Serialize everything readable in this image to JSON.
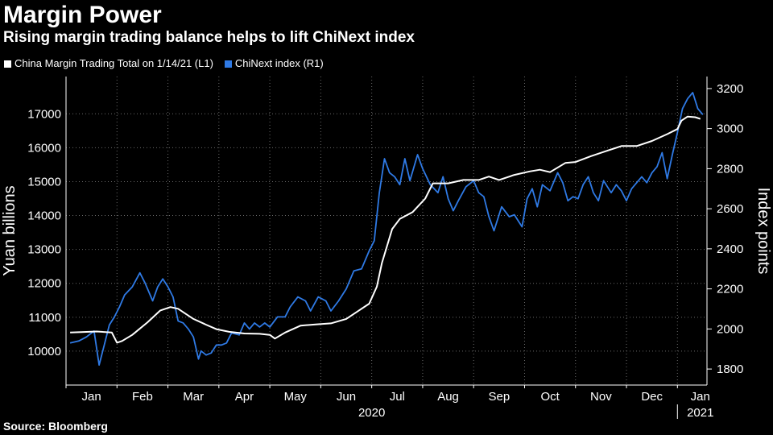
{
  "header": {
    "title": "Margin Power",
    "subtitle": "Rising margin trading balance helps to lift ChiNext index"
  },
  "legend": {
    "margin_label": "China Margin Trading Total on 1/14/21 (L1)",
    "chinext_label": "ChiNext index  (R1)"
  },
  "footer": {
    "source": "Source: Bloomberg"
  },
  "colors": {
    "background": "#000000",
    "text": "#ffffff",
    "margin_series": "#ffffff",
    "chinext_series": "#2f7ae5",
    "grid": "#6a6a6a"
  },
  "chart_data": {
    "type": "line",
    "title": "Margin Power",
    "subtitle": "Rising margin trading balance helps to lift ChiNext index",
    "xlabel": "",
    "ylabel": "Yuan billions",
    "y2label": "Index points",
    "x_unit": "months since 2020-01-01",
    "xlim": [
      0,
      12.58
    ],
    "ylim": [
      9000,
      18100
    ],
    "y2lim": [
      1720,
      3260
    ],
    "y_ticks": [
      10000,
      11000,
      12000,
      13000,
      14000,
      15000,
      16000,
      17000
    ],
    "y_tick_labels": [
      "10000",
      "11000",
      "12000",
      "13000",
      "14000",
      "15000",
      "16000",
      "17000"
    ],
    "y2_ticks": [
      1800,
      2000,
      2200,
      2400,
      2600,
      2800,
      3000,
      3200
    ],
    "y2_tick_labels": [
      "1800",
      "2000",
      "2200",
      "2400",
      "2600",
      "2800",
      "3000",
      "3200"
    ],
    "x_ticks": [
      {
        "label": "Jan",
        "pos": 0.5
      },
      {
        "label": "Feb",
        "pos": 1.5
      },
      {
        "label": "Mar",
        "pos": 2.5
      },
      {
        "label": "Apr",
        "pos": 3.5
      },
      {
        "label": "May",
        "pos": 4.5
      },
      {
        "label": "Jun",
        "pos": 5.5
      },
      {
        "label": "Jul",
        "pos": 6.5
      },
      {
        "label": "Aug",
        "pos": 7.5
      },
      {
        "label": "Sep",
        "pos": 8.5
      },
      {
        "label": "Oct",
        "pos": 9.5
      },
      {
        "label": "Nov",
        "pos": 10.5
      },
      {
        "label": "Dec",
        "pos": 11.5
      },
      {
        "label": "Jan",
        "pos": 12.45
      }
    ],
    "year_labels": [
      {
        "label": "2020",
        "pos": 6.0
      },
      {
        "label": "2021",
        "pos": 12.45
      }
    ],
    "year_divider": 12.0,
    "grid": true,
    "series": [
      {
        "name": "China Margin Trading Total on 1/14/21 (L1)",
        "axis": "left",
        "color": "#ffffff",
        "x": [
          0.08,
          0.3,
          0.6,
          0.9,
          1.0,
          1.1,
          1.3,
          1.6,
          1.85,
          2.05,
          2.2,
          2.5,
          2.75,
          2.95,
          3.2,
          3.5,
          3.8,
          4.0,
          4.1,
          4.3,
          4.6,
          4.9,
          5.2,
          5.5,
          5.75,
          5.95,
          6.1,
          6.2,
          6.4,
          6.55,
          6.8,
          7.05,
          7.2,
          7.5,
          7.8,
          8.1,
          8.3,
          8.5,
          8.8,
          9.1,
          9.3,
          9.5,
          9.8,
          10.0,
          10.3,
          10.6,
          10.9,
          11.0,
          11.2,
          11.5,
          11.8,
          12.0,
          12.08,
          12.2,
          12.35,
          12.45
        ],
        "values": [
          10550,
          10560,
          10580,
          10550,
          10250,
          10300,
          10480,
          10850,
          11200,
          11300,
          11250,
          10950,
          10780,
          10650,
          10570,
          10520,
          10510,
          10480,
          10370,
          10550,
          10750,
          10790,
          10820,
          10950,
          11200,
          11400,
          11900,
          12600,
          13600,
          13900,
          14100,
          14500,
          14950,
          14950,
          15050,
          15050,
          15150,
          15050,
          15200,
          15300,
          15350,
          15280,
          15550,
          15580,
          15750,
          15900,
          16050,
          16050,
          16050,
          16200,
          16400,
          16550,
          16800,
          16920,
          16900,
          16850
        ]
      },
      {
        "name": "ChiNext index  (R1)",
        "axis": "right",
        "color": "#2f7ae5",
        "x": [
          0.08,
          0.25,
          0.4,
          0.55,
          0.65,
          0.75,
          0.85,
          0.95,
          1.05,
          1.15,
          1.3,
          1.45,
          1.55,
          1.7,
          1.8,
          1.9,
          2.0,
          2.1,
          2.2,
          2.3,
          2.4,
          2.5,
          2.6,
          2.65,
          2.75,
          2.85,
          2.95,
          3.05,
          3.15,
          3.25,
          3.4,
          3.5,
          3.6,
          3.7,
          3.8,
          3.9,
          4.0,
          4.15,
          4.3,
          4.4,
          4.55,
          4.7,
          4.8,
          4.95,
          5.1,
          5.2,
          5.35,
          5.5,
          5.65,
          5.8,
          5.95,
          6.05,
          6.15,
          6.25,
          6.35,
          6.45,
          6.55,
          6.65,
          6.75,
          6.9,
          7.0,
          7.15,
          7.3,
          7.4,
          7.5,
          7.6,
          7.7,
          7.85,
          8.0,
          8.1,
          8.2,
          8.3,
          8.4,
          8.5,
          8.55,
          8.7,
          8.8,
          8.95,
          9.05,
          9.15,
          9.25,
          9.35,
          9.5,
          9.65,
          9.75,
          9.85,
          9.95,
          10.05,
          10.15,
          10.25,
          10.35,
          10.45,
          10.55,
          10.7,
          10.8,
          10.9,
          11.0,
          11.1,
          11.2,
          11.3,
          11.4,
          11.5,
          11.6,
          11.7,
          11.8,
          11.9,
          12.0,
          12.1,
          12.2,
          12.3,
          12.4,
          12.5
        ],
        "values": [
          1930,
          1940,
          1960,
          1990,
          1820,
          1920,
          2020,
          2060,
          2110,
          2170,
          2210,
          2280,
          2230,
          2140,
          2210,
          2250,
          2210,
          2160,
          2040,
          2030,
          2000,
          1960,
          1850,
          1890,
          1870,
          1880,
          1920,
          1920,
          1930,
          1980,
          1970,
          2030,
          2000,
          2030,
          2010,
          2030,
          2010,
          2060,
          2060,
          2110,
          2160,
          2140,
          2090,
          2160,
          2140,
          2090,
          2140,
          2200,
          2290,
          2300,
          2390,
          2440,
          2680,
          2850,
          2780,
          2760,
          2720,
          2850,
          2740,
          2870,
          2800,
          2720,
          2680,
          2760,
          2650,
          2590,
          2640,
          2710,
          2740,
          2680,
          2660,
          2560,
          2490,
          2570,
          2610,
          2560,
          2570,
          2510,
          2650,
          2700,
          2610,
          2720,
          2690,
          2780,
          2730,
          2640,
          2660,
          2650,
          2720,
          2760,
          2680,
          2640,
          2740,
          2680,
          2720,
          2690,
          2640,
          2700,
          2730,
          2760,
          2730,
          2780,
          2810,
          2880,
          2750,
          2870,
          2980,
          3100,
          3150,
          3180,
          3100,
          3070
        ]
      }
    ]
  }
}
